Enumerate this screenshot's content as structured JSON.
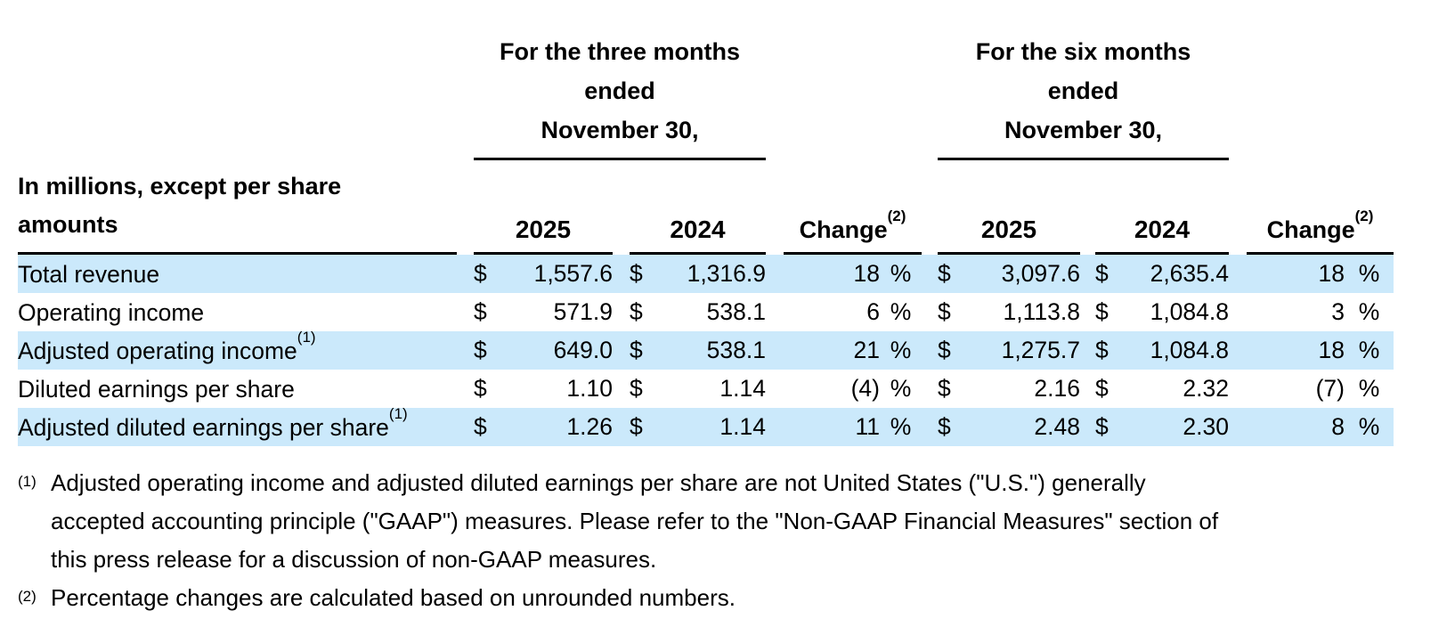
{
  "table": {
    "currency_symbol": "$",
    "percent_symbol": "%",
    "col_groups": [
      {
        "title_lines": [
          "For the three months",
          "ended",
          "November 30,"
        ]
      },
      {
        "title_lines": [
          "For the six months",
          "ended",
          "November 30,"
        ]
      }
    ],
    "row_header": {
      "line1": "In millions, except per share",
      "line2": "amounts"
    },
    "sub_headers": {
      "tm_2025": "2025",
      "tm_2024": "2024",
      "tm_change": "Change",
      "tm_change_sup": "(2)",
      "sm_2025": "2025",
      "sm_2024": "2024",
      "sm_change": "Change",
      "sm_change_sup": "(2)"
    },
    "rows": [
      {
        "label": "Total revenue",
        "sup": "",
        "tm_2025": "1,557.6",
        "tm_2024": "1,316.9",
        "tm_change": "18",
        "sm_2025": "3,097.6",
        "sm_2024": "2,635.4",
        "sm_change": "18"
      },
      {
        "label": "Operating income",
        "sup": "",
        "tm_2025": "571.9",
        "tm_2024": "538.1",
        "tm_change": "6",
        "sm_2025": "1,113.8",
        "sm_2024": "1,084.8",
        "sm_change": "3"
      },
      {
        "label": "Adjusted operating income",
        "sup": "(1)",
        "tm_2025": "649.0",
        "tm_2024": "538.1",
        "tm_change": "21",
        "sm_2025": "1,275.7",
        "sm_2024": "1,084.8",
        "sm_change": "18"
      },
      {
        "label": "Diluted earnings per share",
        "sup": "",
        "tm_2025": "1.10",
        "tm_2024": "1.14",
        "tm_change": "(4)",
        "sm_2025": "2.16",
        "sm_2024": "2.32",
        "sm_change": "(7)"
      },
      {
        "label": "Adjusted diluted earnings per share",
        "sup": "(1)",
        "tm_2025": "1.26",
        "tm_2024": "1.14",
        "tm_change": "11",
        "sm_2025": "2.48",
        "sm_2024": "2.30",
        "sm_change": "8"
      }
    ]
  },
  "footnotes": [
    {
      "marker": "(1)",
      "lines": [
        "Adjusted operating income and adjusted diluted earnings per share are not United States (\"U.S.\") generally",
        "accepted accounting principle (\"GAAP\") measures. Please refer to the \"Non-GAAP Financial Measures\" section of",
        "this press release for a discussion of non-GAAP measures."
      ]
    },
    {
      "marker": "(2)",
      "lines": [
        "Percentage changes are calculated based on unrounded numbers."
      ]
    }
  ],
  "colors": {
    "row_highlight": "#CBE9FB",
    "text": "#000000"
  }
}
